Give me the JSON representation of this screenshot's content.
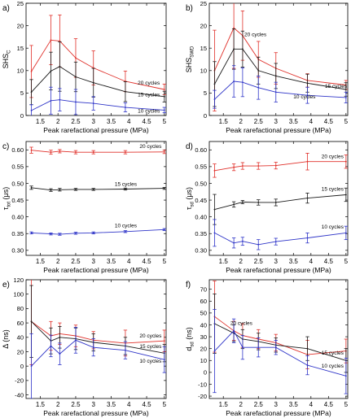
{
  "colors": {
    "20": "#e0302a",
    "15": "#1a1a1a",
    "10": "#2e34c8"
  },
  "chart_data": [
    {
      "type": "line",
      "panel_label": "a)",
      "ylabel_main": "SHS",
      "ylabel_sub": "C",
      "xlabel": "Peak rarefactional pressure (MPa)",
      "xlim": [
        1.1,
        5.05
      ],
      "ylim": [
        0,
        25
      ],
      "xticks": [
        1.5,
        2,
        2.5,
        3,
        3.5,
        4,
        4.5,
        5
      ],
      "xtick_labels": [
        "1.5",
        "2",
        "2.5",
        "3",
        "3.5",
        "4",
        "4.5",
        "5"
      ],
      "yticks": [
        0,
        5,
        10,
        15,
        20,
        25
      ],
      "ytick_labels": [
        "0",
        "5",
        "10",
        "15",
        "20",
        "25"
      ],
      "x": [
        1.25,
        1.8,
        2.05,
        2.5,
        3,
        3.9,
        5
      ],
      "series": [
        {
          "name": "20 cycles",
          "cycles": "20",
          "values": [
            9.8,
            16.8,
            16.6,
            12.8,
            10.6,
            7.6,
            5.8
          ],
          "err": [
            5.8,
            5.5,
            5.8,
            4.3,
            3.8,
            2.3,
            1.2
          ],
          "label_at": [
            4.25,
            6.9
          ]
        },
        {
          "name": "15 cycles",
          "cycles": "15",
          "values": [
            5.2,
            9.9,
            10.9,
            8.6,
            7.3,
            5.3,
            4.2
          ],
          "err": [
            2.8,
            4.2,
            5.5,
            3.3,
            3.2,
            2.2,
            1.2
          ],
          "label_at": [
            4.25,
            4.3
          ]
        },
        {
          "name": "10 cycles",
          "cycles": "10",
          "values": [
            1.1,
            3.3,
            3.5,
            3.0,
            2.7,
            1.8,
            1.2
          ],
          "err": [
            1.3,
            3.0,
            2.5,
            2.8,
            1.5,
            1.0,
            0.6
          ],
          "label_at": [
            4.25,
            0.6
          ]
        }
      ]
    },
    {
      "type": "line",
      "panel_label": "b)",
      "ylabel_main": "SHS",
      "ylabel_sub": "SWD",
      "xlabel": "Peak rarefactional pressure (MPa)",
      "xlim": [
        1.1,
        5.05
      ],
      "ylim": [
        0,
        25
      ],
      "xticks": [
        1.5,
        2,
        2.5,
        3,
        3.5,
        4,
        4.5,
        5
      ],
      "xtick_labels": [
        "1.5",
        "2",
        "2.5",
        "3",
        "3.5",
        "4",
        "4.5",
        "5"
      ],
      "yticks": [
        0,
        5,
        10,
        15,
        20,
        25
      ],
      "ytick_labels": [
        "0",
        "5",
        "10",
        "15",
        "20",
        "25"
      ],
      "x": [
        1.25,
        1.8,
        2.05,
        2.5,
        3,
        3.9,
        5
      ],
      "series": [
        {
          "name": "20 cycles",
          "cycles": "20",
          "values": [
            10.0,
            19.5,
            17.8,
            12.5,
            10.5,
            7.8,
            6.8
          ],
          "err": [
            9.0,
            9.0,
            5.5,
            4.0,
            3.5,
            1.5,
            1.0
          ],
          "label_at": [
            2.1,
            17.7
          ]
        },
        {
          "name": "15 cycles",
          "cycles": "15",
          "values": [
            7.0,
            14.8,
            14.8,
            10.0,
            8.8,
            7.2,
            5.8
          ],
          "err": [
            5.0,
            4.5,
            4.0,
            3.0,
            2.8,
            2.0,
            1.5
          ],
          "label_at": [
            4.4,
            6.2
          ]
        },
        {
          "name": "10 cycles",
          "cycles": "10",
          "values": [
            3.6,
            7.6,
            7.4,
            6.2,
            5.2,
            4.5,
            4.0
          ],
          "err": [
            2.0,
            3.5,
            3.2,
            2.6,
            2.2,
            1.8,
            1.2
          ],
          "label_at": [
            3.5,
            3.8
          ]
        }
      ]
    },
    {
      "type": "line",
      "panel_label": "c)",
      "ylabel_main": "τ",
      "ylabel_sub": "tot",
      "ylabel_unit": " (μs)",
      "xlabel": "Peak rarefactional pressure (MPa)",
      "xlim": [
        1.1,
        5.05
      ],
      "ylim": [
        0.285,
        0.625
      ],
      "xticks": [
        1.5,
        2,
        2.5,
        3,
        3.5,
        4,
        4.5,
        5
      ],
      "xtick_labels": [
        "1.5",
        "2",
        "2.5",
        "3",
        "3.5",
        "4",
        "4.5",
        "5"
      ],
      "yticks": [
        0.3,
        0.35,
        0.4,
        0.45,
        0.5,
        0.55,
        0.6
      ],
      "ytick_labels": [
        "0.30",
        "0.35",
        "0.40",
        "0.45",
        "0.50",
        "0.55",
        "0.60"
      ],
      "x": [
        1.25,
        1.8,
        2.05,
        2.5,
        3,
        3.9,
        5
      ],
      "series": [
        {
          "name": "20 cycles",
          "cycles": "20",
          "values": [
            0.599,
            0.593,
            0.596,
            0.593,
            0.593,
            0.593,
            0.594
          ],
          "err": [
            0.009,
            0.006,
            0.005,
            0.005,
            0.005,
            0.005,
            0.005
          ],
          "label_at": [
            4.3,
            0.605
          ]
        },
        {
          "name": "15 cycles",
          "cycles": "15",
          "values": [
            0.487,
            0.48,
            0.481,
            0.482,
            0.482,
            0.483,
            0.485
          ],
          "err": [
            0.005,
            0.004,
            0.004,
            0.003,
            0.003,
            0.003,
            0.003
          ],
          "label_at": [
            3.6,
            0.493
          ]
        },
        {
          "name": "10 cycles",
          "cycles": "10",
          "values": [
            0.352,
            0.349,
            0.348,
            0.351,
            0.352,
            0.356,
            0.362
          ],
          "err": [
            0.003,
            0.003,
            0.003,
            0.003,
            0.003,
            0.003,
            0.003
          ],
          "label_at": [
            3.6,
            0.369
          ]
        }
      ]
    },
    {
      "type": "line",
      "panel_label": "d)",
      "ylabel_main": "τ",
      "ylabel_sub": "sd",
      "ylabel_unit": " (μs)",
      "xlabel": "Peak rarefactional pressure (MPa)",
      "xlim": [
        1.1,
        5.05
      ],
      "ylim": [
        0.285,
        0.625
      ],
      "xticks": [
        1.5,
        2,
        2.5,
        3,
        3.5,
        4,
        4.5,
        5
      ],
      "xtick_labels": [
        "1.5",
        "2",
        "2.5",
        "3",
        "3.5",
        "4",
        "4.5",
        "5"
      ],
      "yticks": [
        0.3,
        0.35,
        0.4,
        0.45,
        0.5,
        0.55,
        0.6
      ],
      "ytick_labels": [
        "0.30",
        "0.35",
        "0.40",
        "0.45",
        "0.50",
        "0.55",
        "0.60"
      ],
      "x": [
        1.25,
        1.8,
        2.05,
        2.5,
        3,
        3.9,
        5
      ],
      "series": [
        {
          "name": "20 cycles",
          "cycles": "20",
          "values": [
            0.538,
            0.548,
            0.552,
            0.552,
            0.553,
            0.565,
            0.565
          ],
          "err": [
            0.02,
            0.01,
            0.01,
            0.01,
            0.01,
            0.025,
            0.02
          ],
          "label_at": [
            4.3,
            0.575
          ]
        },
        {
          "name": "15 cycles",
          "cycles": "15",
          "values": [
            0.422,
            0.437,
            0.444,
            0.443,
            0.443,
            0.456,
            0.466
          ],
          "err": [
            0.045,
            0.008,
            0.005,
            0.008,
            0.01,
            0.015,
            0.02
          ],
          "label_at": [
            4.3,
            0.478
          ]
        },
        {
          "name": "10 cycles",
          "cycles": "10",
          "values": [
            0.352,
            0.322,
            0.327,
            0.317,
            0.326,
            0.337,
            0.352
          ],
          "err": [
            0.04,
            0.015,
            0.012,
            0.015,
            0.01,
            0.015,
            0.02
          ],
          "label_at": [
            4.3,
            0.365
          ]
        }
      ]
    },
    {
      "type": "line",
      "panel_label": "e)",
      "ylabel_main": "Δ",
      "ylabel_sub": "",
      "ylabel_unit": " (ns)",
      "xlabel": "Peak rarefactional pressure (MPa)",
      "xlim": [
        1.1,
        5.05
      ],
      "ylim": [
        -45,
        120
      ],
      "xticks": [
        1.5,
        2,
        2.5,
        3,
        3.5,
        4,
        4.5,
        5
      ],
      "xtick_labels": [
        "1.5",
        "2",
        "2.5",
        "3",
        "3.5",
        "4",
        "4.5",
        "5"
      ],
      "yticks": [
        -40,
        -20,
        0,
        20,
        40,
        60,
        80,
        100,
        120
      ],
      "ytick_labels": [
        "-40",
        "-20",
        "0",
        "20",
        "40",
        "60",
        "80",
        "100",
        "120"
      ],
      "x": [
        1.25,
        1.8,
        2.05,
        2.5,
        3,
        3.9,
        5
      ],
      "series": [
        {
          "name": "20 cycles",
          "cycles": "20",
          "values": [
            62,
            42,
            45,
            42,
            36,
            32,
            35
          ],
          "err": [
            60,
            20,
            15,
            15,
            12,
            18,
            15
          ],
          "label_at": [
            4.3,
            40
          ]
        },
        {
          "name": "15 cycles",
          "cycles": "15",
          "values": [
            62,
            35,
            40,
            38,
            33,
            28,
            18
          ],
          "err": [
            50,
            18,
            15,
            15,
            12,
            12,
            12
          ],
          "label_at": [
            4.3,
            25
          ]
        },
        {
          "name": "10 cycles",
          "cycles": "10",
          "values": [
            0,
            28,
            17,
            36,
            26,
            22,
            9
          ],
          "err": [
            45,
            15,
            15,
            18,
            12,
            12,
            18
          ],
          "label_at": [
            4.3,
            5
          ]
        }
      ]
    },
    {
      "type": "line",
      "panel_label": "f)",
      "ylabel_main": "d",
      "ylabel_sub": "sd",
      "ylabel_unit": " (ns)",
      "xlabel": "Peak rarefactional pressure (MPa)",
      "xlim": [
        1.1,
        5.05
      ],
      "ylim": [
        -22,
        78
      ],
      "xticks": [
        1.5,
        2,
        2.5,
        3,
        3.5,
        4,
        4.5,
        5
      ],
      "xtick_labels": [
        "1.5",
        "2",
        "2.5",
        "3",
        "3.5",
        "4",
        "4.5",
        "5"
      ],
      "yticks": [
        -20,
        -10,
        0,
        10,
        20,
        30,
        40,
        50,
        60,
        70
      ],
      "ytick_labels": [
        "-20",
        "-10",
        "0",
        "10",
        "20",
        "30",
        "40",
        "50",
        "60",
        "70"
      ],
      "x": [
        1.25,
        1.8,
        2.05,
        2.5,
        3,
        3.9,
        5
      ],
      "series": [
        {
          "name": "20 cycles",
          "cycles": "20",
          "values": [
            47,
            35,
            31,
            28,
            25,
            15,
            18
          ],
          "err": [
            30,
            8,
            10,
            8,
            7,
            12,
            10
          ],
          "label_at": [
            1.7,
            40
          ]
        },
        {
          "name": "15 cycles",
          "cycles": "15",
          "values": [
            41,
            33,
            28,
            26,
            23,
            20,
            10
          ],
          "err": [
            25,
            7,
            8,
            7,
            6,
            10,
            10
          ],
          "label_at": [
            4.3,
            15
          ]
        },
        {
          "name": "10 cycles",
          "cycles": "10",
          "values": [
            18,
            35,
            21,
            21,
            21,
            6,
            -3
          ],
          "err": [
            35,
            10,
            10,
            8,
            6,
            8,
            15
          ],
          "label_at": [
            4.3,
            4
          ]
        }
      ]
    }
  ]
}
